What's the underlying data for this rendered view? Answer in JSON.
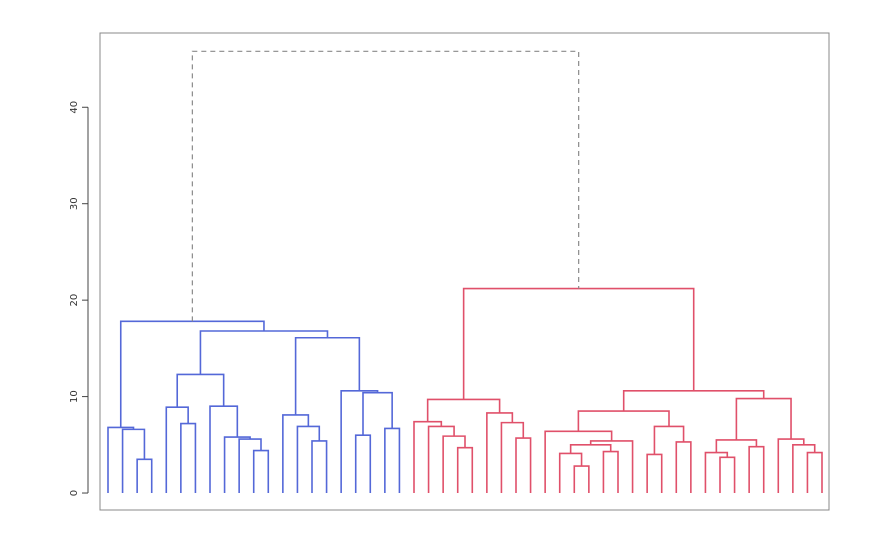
{
  "chart_data": {
    "type": "dendrogram",
    "ylim": [
      -1.76,
      47.7
    ],
    "yticks": [
      0,
      10,
      20,
      30,
      40
    ],
    "tree": {
      "height": 45.8,
      "color": "#8a8a8a",
      "dashed": true,
      "children": [
        {
          "height": 17.8,
          "color": "#5468d8",
          "children": [
            {
              "height": 6.8,
              "children": [
                0,
                {
                  "height": 6.6,
                  "children": [
                    0,
                    {
                      "height": 3.5,
                      "children": [
                        0,
                        0
                      ]
                    }
                  ]
                }
              ]
            },
            {
              "height": 16.8,
              "children": [
                {
                  "height": 12.3,
                  "children": [
                    {
                      "height": 8.9,
                      "children": [
                        0,
                        {
                          "height": 7.2,
                          "children": [
                            0,
                            0
                          ]
                        }
                      ]
                    },
                    {
                      "height": 9.0,
                      "children": [
                        0,
                        {
                          "height": 5.8,
                          "children": [
                            0,
                            {
                              "height": 5.6,
                              "children": [
                                0,
                                {
                                  "height": 4.4,
                                  "children": [
                                    0,
                                    0
                                  ]
                                }
                              ]
                            }
                          ]
                        }
                      ]
                    }
                  ]
                },
                {
                  "height": 16.1,
                  "children": [
                    {
                      "height": 8.1,
                      "children": [
                        0,
                        {
                          "height": 6.9,
                          "children": [
                            0,
                            {
                              "height": 5.4,
                              "children": [
                                0,
                                0
                              ]
                            }
                          ]
                        }
                      ]
                    },
                    {
                      "height": 10.6,
                      "children": [
                        0,
                        {
                          "height": 10.4,
                          "children": [
                            {
                              "height": 6.0,
                              "children": [
                                0,
                                0
                              ]
                            },
                            {
                              "height": 6.7,
                              "children": [
                                0,
                                0
                              ]
                            }
                          ]
                        }
                      ]
                    }
                  ]
                }
              ]
            }
          ]
        },
        {
          "height": 21.2,
          "color": "#e0506a",
          "children": [
            {
              "height": 9.7,
              "children": [
                {
                  "height": 7.4,
                  "children": [
                    0,
                    {
                      "height": 6.9,
                      "children": [
                        0,
                        {
                          "height": 5.9,
                          "children": [
                            0,
                            {
                              "height": 4.7,
                              "children": [
                                0,
                                0
                              ]
                            }
                          ]
                        }
                      ]
                    }
                  ]
                },
                {
                  "height": 8.3,
                  "children": [
                    0,
                    {
                      "height": 7.3,
                      "children": [
                        0,
                        {
                          "height": 5.7,
                          "children": [
                            0,
                            0
                          ]
                        }
                      ]
                    }
                  ]
                }
              ]
            },
            {
              "height": 10.6,
              "children": [
                {
                  "height": 8.5,
                  "children": [
                    {
                      "height": 6.4,
                      "children": [
                        0,
                        {
                          "height": 5.4,
                          "children": [
                            {
                              "height": 5.0,
                              "children": [
                                {
                                  "height": 4.1,
                                  "children": [
                                    0,
                                    {
                                      "height": 2.8,
                                      "children": [
                                        0,
                                        0
                                      ]
                                    }
                                  ]
                                },
                                {
                                  "height": 4.3,
                                  "children": [
                                    0,
                                    0
                                  ]
                                }
                              ]
                            },
                            0
                          ]
                        }
                      ]
                    },
                    {
                      "height": 6.9,
                      "children": [
                        {
                          "height": 4.0,
                          "children": [
                            0,
                            0
                          ]
                        },
                        {
                          "height": 5.3,
                          "children": [
                            0,
                            0
                          ]
                        }
                      ]
                    }
                  ]
                },
                {
                  "height": 9.8,
                  "children": [
                    {
                      "height": 5.5,
                      "children": [
                        {
                          "height": 4.2,
                          "children": [
                            0,
                            {
                              "height": 3.7,
                              "children": [
                                0,
                                0
                              ]
                            }
                          ]
                        },
                        {
                          "height": 4.8,
                          "children": [
                            0,
                            0
                          ]
                        }
                      ]
                    },
                    {
                      "height": 5.6,
                      "children": [
                        0,
                        {
                          "height": 5.0,
                          "children": [
                            0,
                            {
                              "height": 4.2,
                              "children": [
                                0,
                                0
                              ]
                            }
                          ]
                        }
                      ]
                    }
                  ]
                }
              ]
            }
          ]
        }
      ]
    }
  }
}
